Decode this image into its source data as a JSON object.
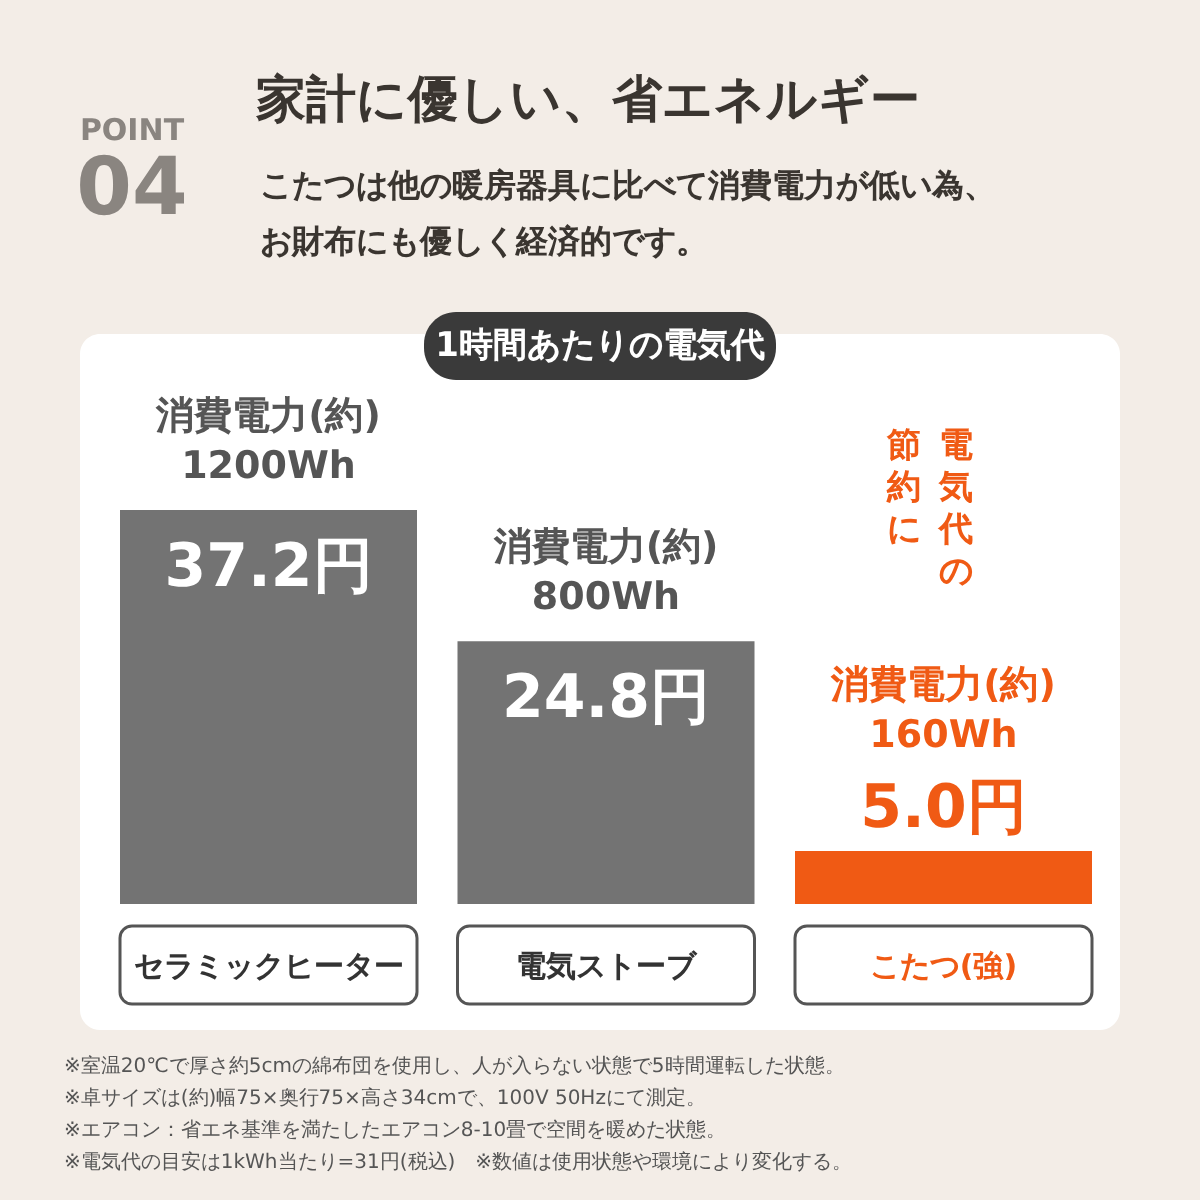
{
  "chart_data": {
    "type": "bar",
    "title": "家計に優しい、省エネルギー",
    "subtitle": "こたつは他の暖房器具に比べて消費電力が低い為、お財布にも優しく経済的です。",
    "categories": [
      "セラミックヒーター",
      "電気ストーブ",
      "こたつ(強)"
    ],
    "values": [
      37.2,
      24.8,
      5.0
    ],
    "colors": [
      "#737373",
      "#737373",
      "#f05a14"
    ],
    "value_labels": [
      "37.2円",
      "24.8円",
      "5.0円"
    ],
    "annotations": [
      "POINT",
      "04",
      "1時間あたりの電気代",
      "電気代の",
      "節約に",
      "※室温20℃で厚さ約5cmの綿布団を使用し、人が入らない状態で5時間運転した状態。",
      "※卓サイズは(約)幅75×奥行75×高さ34cmで、100V 50Hzにて測定。",
      "※エアコン：省エネ基準を満たしたエアコン8-10畳で空間を暖めた状態。",
      "※電気代の目安は1kWh当たり=31円(税込)　※数値は使用状態や環境により変化する。",
      {
        "text": "消費電力(約)\n1200Wh",
        "x": "セラミックヒーター",
        "y": 37.2
      },
      {
        "text": "消費電力(約)\n800Wh",
        "x": "電気ストーブ",
        "y": 24.8
      },
      {
        "text": "消費電力(約)\n160Wh",
        "x": "こたつ(強)",
        "y": 5.0
      }
    ]
  }
}
